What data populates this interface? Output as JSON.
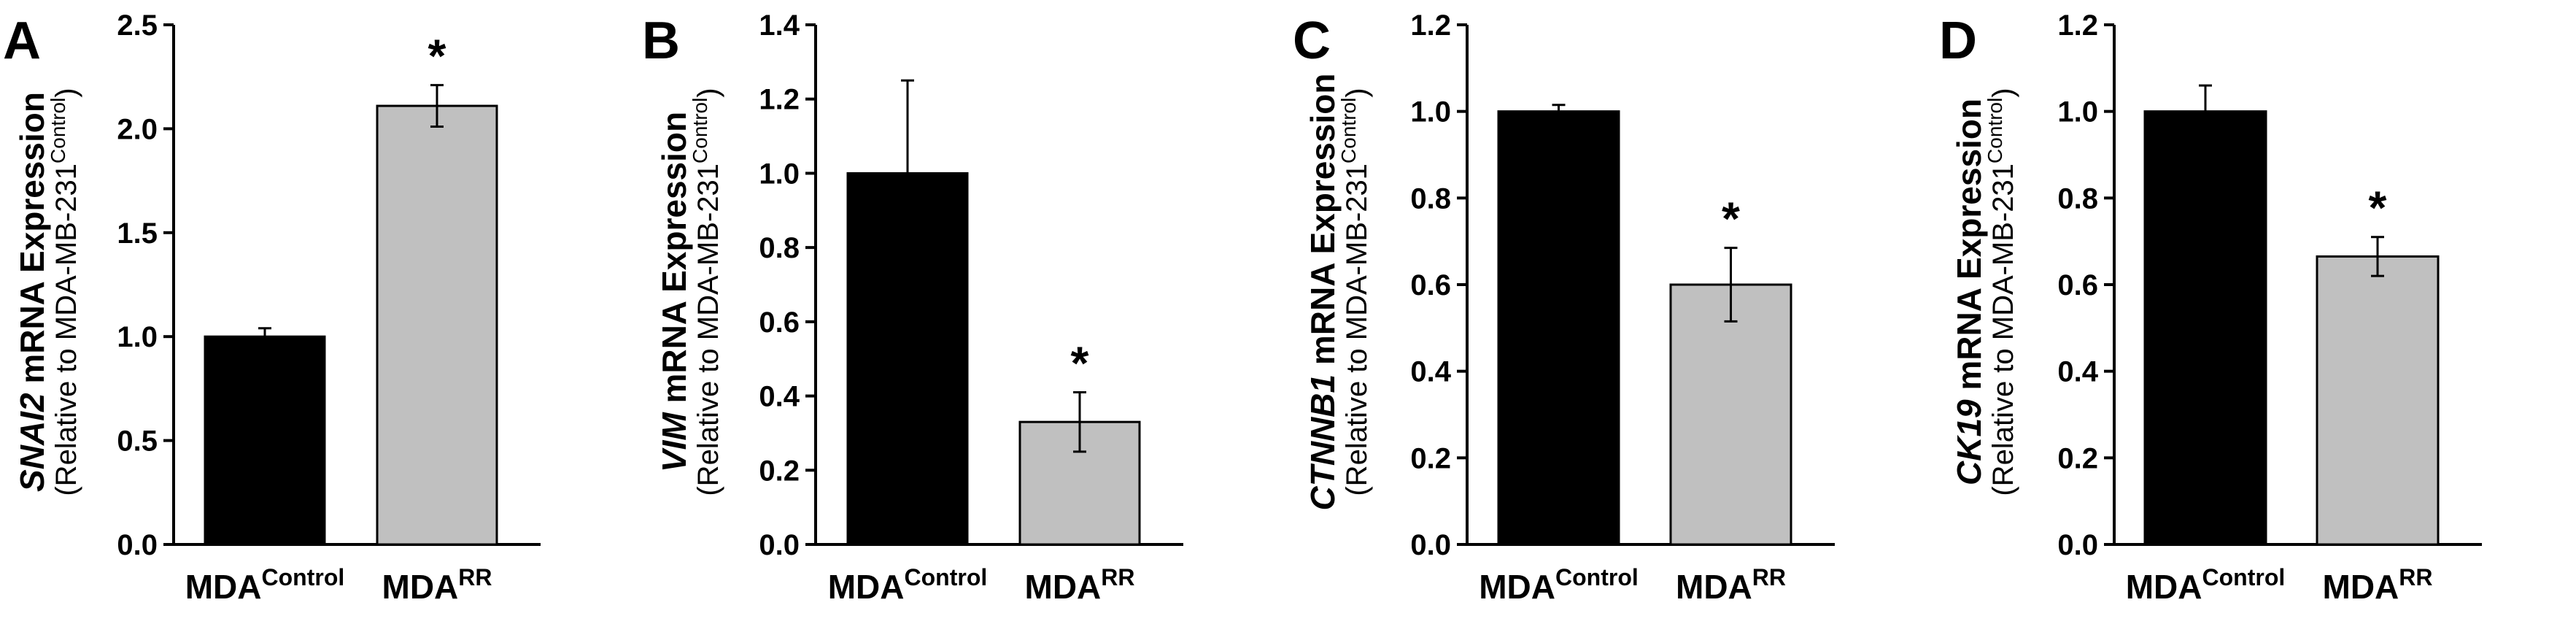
{
  "figure": {
    "panels": [
      {
        "letter": "A",
        "gene": "SNAI2",
        "ylabel_rest": " mRNA Expression",
        "ylabel_sub": "(Relative to MDA-MB-231",
        "ylabel_sub_sup": "Control",
        "ylabel_sub_close": ")"
      },
      {
        "letter": "B",
        "gene": "VIM",
        "ylabel_rest": " mRNA Expression",
        "ylabel_sub": "(Relative to MDA-MB-231",
        "ylabel_sub_sup": "Control",
        "ylabel_sub_close": ")"
      },
      {
        "letter": "C",
        "gene": "CTNNB1",
        "ylabel_rest": " mRNA Expression",
        "ylabel_sub": "(Relative to MDA-MB-231",
        "ylabel_sub_sup": "Control",
        "ylabel_sub_close": ")"
      },
      {
        "letter": "D",
        "gene": "CK19",
        "ylabel_rest": " mRNA Expression",
        "ylabel_sub": "(Relative to MDA-MB-231",
        "ylabel_sub_sup": "Control",
        "ylabel_sub_close": ")"
      }
    ]
  },
  "chart_data": [
    {
      "type": "bar",
      "panel": "A",
      "categories": [
        {
          "base": "MDA",
          "sup": "Control"
        },
        {
          "base": "MDA",
          "sup": "RR"
        }
      ],
      "values": [
        1.0,
        2.11
      ],
      "errors": [
        0.04,
        0.1
      ],
      "significance": [
        "",
        "*"
      ],
      "colors": [
        "#000000",
        "#c0c0c0"
      ],
      "ylim": [
        0,
        2.5
      ],
      "ticks": [
        "0.0",
        "0.5",
        "1.0",
        "1.5",
        "2.0",
        "2.5"
      ],
      "ylabel": "SNAI2 mRNA Expression (Relative to MDA-MB-231Control)"
    },
    {
      "type": "bar",
      "panel": "B",
      "categories": [
        {
          "base": "MDA",
          "sup": "Control"
        },
        {
          "base": "MDA",
          "sup": "RR"
        }
      ],
      "values": [
        1.0,
        0.33
      ],
      "errors": [
        0.25,
        0.08
      ],
      "significance": [
        "",
        "*"
      ],
      "colors": [
        "#000000",
        "#c0c0c0"
      ],
      "ylim": [
        0,
        1.4
      ],
      "ticks": [
        "0.0",
        "0.2",
        "0.4",
        "0.6",
        "0.8",
        "1.0",
        "1.2",
        "1.4"
      ],
      "ylabel": "VIM mRNA Expression (Relative to MDA-MB-231Control)"
    },
    {
      "type": "bar",
      "panel": "C",
      "categories": [
        {
          "base": "MDA",
          "sup": "Control"
        },
        {
          "base": "MDA",
          "sup": "RR"
        }
      ],
      "values": [
        1.0,
        0.6
      ],
      "errors": [
        0.015,
        0.085
      ],
      "significance": [
        "",
        "*"
      ],
      "colors": [
        "#000000",
        "#c0c0c0"
      ],
      "ylim": [
        0,
        1.2
      ],
      "ticks": [
        "0.0",
        "0.2",
        "0.4",
        "0.6",
        "0.8",
        "1.0",
        "1.2"
      ],
      "ylabel": "CTNNB1 mRNA Expression (Relative to MDA-MB-231Control)"
    },
    {
      "type": "bar",
      "panel": "D",
      "categories": [
        {
          "base": "MDA",
          "sup": "Control"
        },
        {
          "base": "MDA",
          "sup": "RR"
        }
      ],
      "values": [
        1.0,
        0.665
      ],
      "errors": [
        0.06,
        0.045
      ],
      "significance": [
        "",
        "*"
      ],
      "colors": [
        "#000000",
        "#c0c0c0"
      ],
      "ylim": [
        0,
        1.2
      ],
      "ticks": [
        "0.0",
        "0.2",
        "0.4",
        "0.6",
        "0.8",
        "1.0",
        "1.2"
      ],
      "ylabel": "CK19 mRNA Expression (Relative to MDA-MB-231Control)"
    }
  ]
}
